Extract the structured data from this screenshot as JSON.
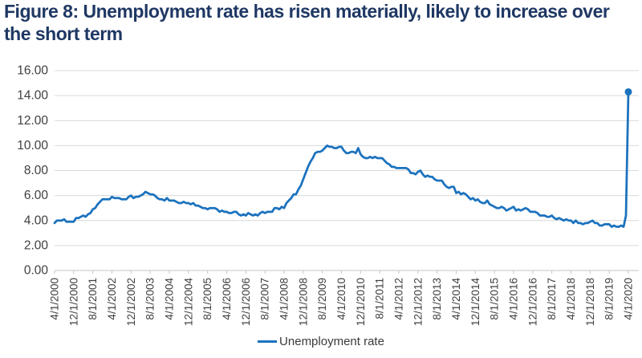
{
  "title": "Figure 8: Unemployment rate has risen materially, likely to increase over the short term",
  "legend": {
    "label": "Unemployment rate"
  },
  "colors": {
    "title": "#1F3864",
    "line": "#1B72BE",
    "grid": "#D9D9D9",
    "axis": "#C6C6C6",
    "tick_text": "#404040"
  },
  "chart_data": {
    "type": "line",
    "series_name": "Unemployment rate",
    "frequency": "monthly",
    "x_start": "4/1/2000",
    "x_end": "4/1/2020",
    "ylim": [
      0,
      16
    ],
    "grid": "horizontal",
    "legend_position": "bottom-center",
    "end_point_marker": true,
    "y_tick_labels": [
      "0.00",
      "2.00",
      "4.00",
      "6.00",
      "8.00",
      "10.00",
      "12.00",
      "14.00",
      "16.00"
    ],
    "y_tick_values": [
      0,
      2,
      4,
      6,
      8,
      10,
      12,
      14,
      16
    ],
    "x_tick_labels": [
      "4/1/2000",
      "12/1/2000",
      "8/1/2001",
      "4/1/2002",
      "12/1/2002",
      "8/1/2003",
      "4/1/2004",
      "12/1/2004",
      "8/1/2005",
      "4/1/2006",
      "12/1/2006",
      "8/1/2007",
      "4/1/2008",
      "12/1/2008",
      "8/1/2009",
      "4/1/2010",
      "12/1/2010",
      "8/1/2011",
      "4/1/2012",
      "12/1/2012",
      "8/1/2013",
      "4/1/2014",
      "12/1/2014",
      "8/1/2015",
      "4/1/2016",
      "12/1/2016",
      "8/1/2017",
      "4/1/2018",
      "12/1/2018",
      "8/1/2019",
      "4/1/2020"
    ],
    "values": [
      3.8,
      4.0,
      4.0,
      4.0,
      4.1,
      3.9,
      3.9,
      3.9,
      3.9,
      4.2,
      4.2,
      4.3,
      4.4,
      4.3,
      4.5,
      4.6,
      4.9,
      5.0,
      5.3,
      5.5,
      5.7,
      5.7,
      5.7,
      5.7,
      5.9,
      5.8,
      5.8,
      5.8,
      5.7,
      5.7,
      5.7,
      5.9,
      6.0,
      5.8,
      5.9,
      5.9,
      6.0,
      6.1,
      6.3,
      6.2,
      6.1,
      6.1,
      6.0,
      5.8,
      5.7,
      5.7,
      5.6,
      5.8,
      5.6,
      5.6,
      5.6,
      5.5,
      5.4,
      5.4,
      5.5,
      5.4,
      5.4,
      5.3,
      5.4,
      5.2,
      5.2,
      5.1,
      5.0,
      5.0,
      4.9,
      5.0,
      5.0,
      5.0,
      4.9,
      4.7,
      4.8,
      4.7,
      4.7,
      4.6,
      4.6,
      4.7,
      4.7,
      4.5,
      4.4,
      4.5,
      4.4,
      4.6,
      4.5,
      4.4,
      4.5,
      4.4,
      4.6,
      4.7,
      4.6,
      4.7,
      4.7,
      4.7,
      5.0,
      5.0,
      4.9,
      5.1,
      5.0,
      5.4,
      5.6,
      5.8,
      6.1,
      6.1,
      6.5,
      6.8,
      7.3,
      7.8,
      8.3,
      8.7,
      9.0,
      9.4,
      9.5,
      9.5,
      9.6,
      9.8,
      10.0,
      9.9,
      9.9,
      9.8,
      9.8,
      9.9,
      9.9,
      9.6,
      9.4,
      9.4,
      9.5,
      9.5,
      9.4,
      9.8,
      9.3,
      9.1,
      9.0,
      9.0,
      9.1,
      9.0,
      9.1,
      9.0,
      9.0,
      9.0,
      8.8,
      8.6,
      8.5,
      8.3,
      8.3,
      8.2,
      8.2,
      8.2,
      8.2,
      8.2,
      8.1,
      7.8,
      7.8,
      7.7,
      7.9,
      8.0,
      7.7,
      7.5,
      7.6,
      7.5,
      7.5,
      7.3,
      7.2,
      7.2,
      7.2,
      6.9,
      6.7,
      6.6,
      6.7,
      6.7,
      6.2,
      6.3,
      6.1,
      6.2,
      6.1,
      5.9,
      5.7,
      5.8,
      5.6,
      5.7,
      5.5,
      5.4,
      5.4,
      5.6,
      5.3,
      5.2,
      5.1,
      5.0,
      5.0,
      5.1,
      5.0,
      4.8,
      4.9,
      5.0,
      5.1,
      4.8,
      4.9,
      4.8,
      4.9,
      5.0,
      4.9,
      4.7,
      4.7,
      4.7,
      4.6,
      4.4,
      4.4,
      4.4,
      4.3,
      4.3,
      4.4,
      4.2,
      4.1,
      4.2,
      4.1,
      4.0,
      4.1,
      4.0,
      4.0,
      3.8,
      4.0,
      3.8,
      3.8,
      3.7,
      3.8,
      3.8,
      3.9,
      4.0,
      3.8,
      3.8,
      3.6,
      3.6,
      3.7,
      3.7,
      3.7,
      3.5,
      3.6,
      3.5,
      3.5,
      3.6,
      3.5,
      4.4,
      14.3
    ]
  }
}
